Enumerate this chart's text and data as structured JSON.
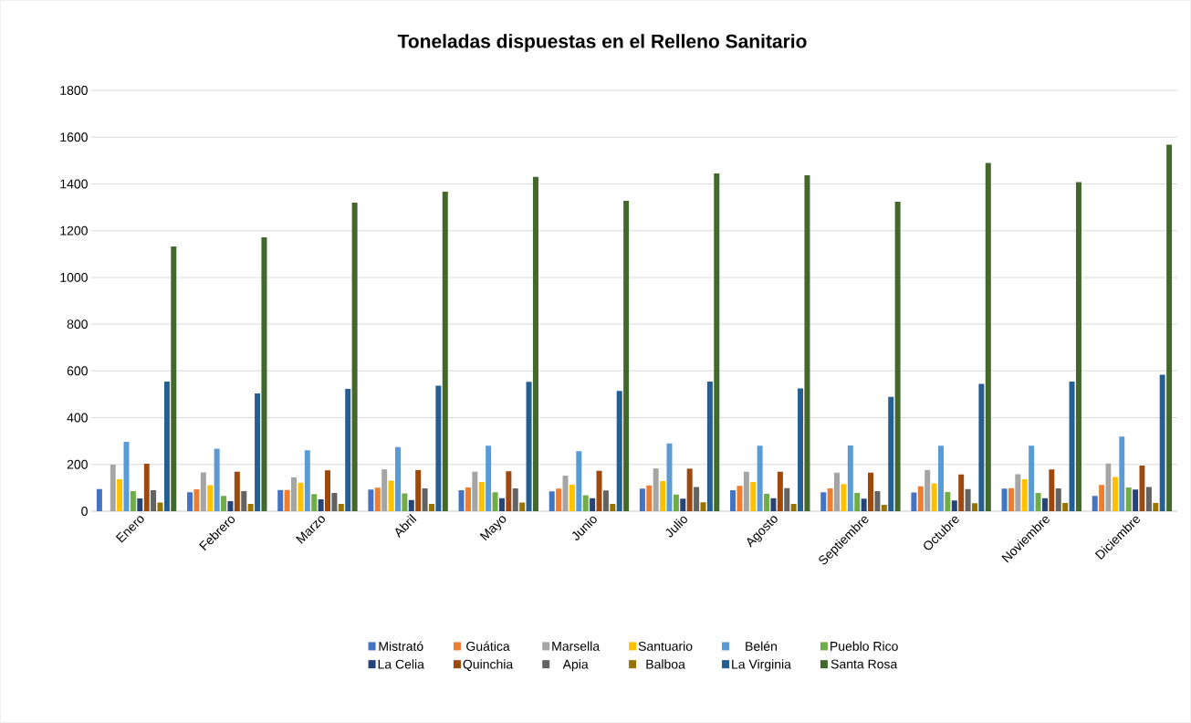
{
  "chart_data": {
    "type": "bar",
    "title": "Toneladas dispuestas en el Relleno Sanitario",
    "categories": [
      "Enero",
      "Febrero",
      "Marzo",
      "Abril",
      "Mayo",
      "Junio",
      "Julio",
      "Agosto",
      "Septiembre",
      "Octubre",
      "Noviembre",
      "Diciembre"
    ],
    "series": [
      {
        "name": "Mistrató",
        "color": "#4472c4",
        "values": [
          95,
          81,
          91,
          93,
          90,
          85,
          97,
          90,
          81,
          80,
          97,
          65
        ]
      },
      {
        "name": "Guática",
        "color": "#ed7d31",
        "values": [
          null,
          94,
          91,
          101,
          102,
          97,
          110,
          108,
          98,
          106,
          99,
          112
        ]
      },
      {
        "name": "Marsella",
        "color": "#a5a5a5",
        "values": [
          199,
          166,
          145,
          179,
          169,
          152,
          183,
          169,
          165,
          176,
          158,
          204
        ]
      },
      {
        "name": "Santuario",
        "color": "#ffc000",
        "values": [
          137,
          111,
          122,
          131,
          125,
          113,
          129,
          125,
          116,
          119,
          137,
          146
        ]
      },
      {
        "name": "Belén",
        "color": "#5b9bd5",
        "values": [
          297,
          267,
          261,
          274,
          280,
          257,
          290,
          280,
          281,
          280,
          280,
          319
        ]
      },
      {
        "name": "Pueblo Rico",
        "color": "#70ad47",
        "values": [
          86,
          65,
          73,
          76,
          81,
          68,
          71,
          74,
          78,
          82,
          78,
          102
        ]
      },
      {
        "name": "La Celia",
        "color": "#264478",
        "values": [
          55,
          43,
          51,
          48,
          56,
          56,
          54,
          56,
          54,
          46,
          56,
          93
        ]
      },
      {
        "name": "Quinchia",
        "color": "#9e480e",
        "values": [
          203,
          169,
          175,
          176,
          171,
          173,
          182,
          169,
          165,
          157,
          179,
          195
        ]
      },
      {
        "name": "Apia",
        "color": "#636363",
        "values": [
          90,
          86,
          78,
          98,
          98,
          89,
          103,
          99,
          86,
          95,
          98,
          103
        ]
      },
      {
        "name": "Balboa",
        "color": "#997300",
        "values": [
          37,
          31,
          31,
          31,
          37,
          31,
          38,
          31,
          27,
          34,
          35,
          35
        ]
      },
      {
        "name": "La Virginia",
        "color": "#255e91",
        "values": [
          554,
          504,
          523,
          537,
          553,
          514,
          554,
          525,
          489,
          545,
          554,
          584
        ]
      },
      {
        "name": "Santa Rosa",
        "color": "#43682b",
        "values": [
          1132,
          1171,
          1320,
          1367,
          1430,
          1328,
          1445,
          1437,
          1324,
          1490,
          1408,
          1568
        ]
      }
    ],
    "ylim": [
      0,
      1800
    ],
    "yticks": [
      0,
      200,
      400,
      600,
      800,
      1000,
      1200,
      1400,
      1600,
      1800
    ],
    "grid": "y",
    "legend": "bottom"
  }
}
